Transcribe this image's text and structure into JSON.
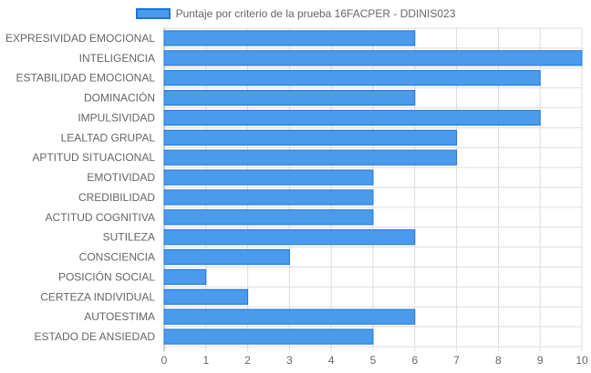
{
  "chart_data": {
    "type": "bar",
    "orientation": "horizontal",
    "title": "",
    "xlabel": "",
    "ylabel": "",
    "xlim": [
      0,
      10
    ],
    "x_ticks": [
      "0",
      "1",
      "2",
      "3",
      "4",
      "5",
      "6",
      "7",
      "8",
      "9",
      "10"
    ],
    "grid": true,
    "legend_placement": "top-center",
    "categories": [
      "EXPRESIVIDAD EMOCIONAL",
      "INTELIGENCIA",
      "ESTABILIDAD EMOCIONAL",
      "DOMINACIÓN",
      "IMPULSIVIDAD",
      "LEALTAD GRUPAL",
      "APTITUD SITUACIONAL",
      "EMOTIVIDAD",
      "CREDIBILIDAD",
      "ACTITUD COGNITIVA",
      "SUTILEZA",
      "CONSCIENCIA",
      "POSICIÓN SOCIAL",
      "CERTEZA INDIVIDUAL",
      "AUTOESTIMA",
      "ESTADO DE ANSIEDAD"
    ],
    "series": [
      {
        "name": "Puntaje por criterio de la prueba 16FACPER - DDINIS023",
        "values": [
          6,
          10,
          9,
          6,
          9,
          7,
          7,
          5,
          5,
          5,
          6,
          3,
          1,
          2,
          6,
          5
        ]
      }
    ],
    "colors": {
      "bar_fill": "#4b9bec",
      "bar_border": "#1e74d8",
      "grid": "#dddddd",
      "label": "#666666"
    }
  }
}
